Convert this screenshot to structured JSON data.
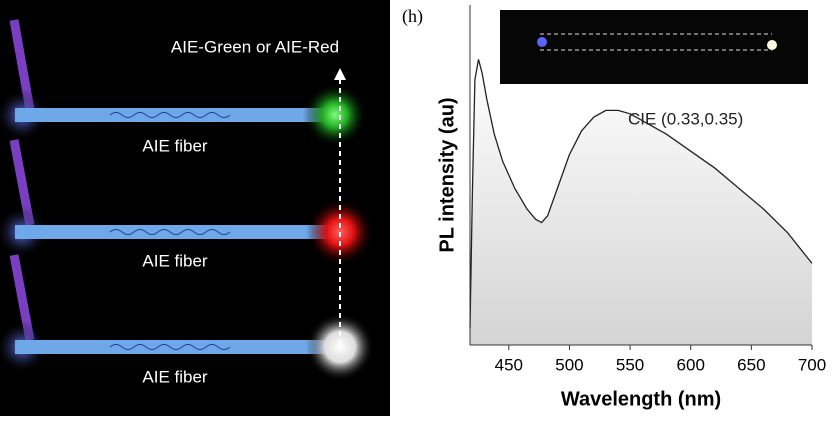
{
  "left_panel": {
    "arrow_label": "AIE-Green or AIE-Red",
    "fiber_labels": [
      "AIE fiber",
      "AIE fiber",
      "AIE fiber"
    ]
  },
  "chart_data": {
    "type": "line",
    "panel_label": "(h)",
    "x_label": "Wavelength (nm)",
    "y_label": "PL intensity (au)",
    "annotation": "CIE (0.33,0.35)",
    "xlim": [
      418,
      700
    ],
    "xticks": [
      450,
      500,
      550,
      600,
      650,
      700
    ],
    "ylim": [
      0,
      1
    ],
    "series": [
      {
        "color": "#222222",
        "x": [
          418,
          420,
          422,
          425,
          428,
          432,
          438,
          445,
          455,
          465,
          472,
          477,
          482,
          490,
          500,
          510,
          520,
          530,
          540,
          550,
          560,
          580,
          600,
          620,
          640,
          660,
          680,
          700
        ],
        "values": [
          0.05,
          0.45,
          0.78,
          0.84,
          0.8,
          0.72,
          0.62,
          0.54,
          0.46,
          0.4,
          0.37,
          0.36,
          0.38,
          0.46,
          0.56,
          0.63,
          0.67,
          0.69,
          0.69,
          0.68,
          0.66,
          0.62,
          0.57,
          0.52,
          0.46,
          0.4,
          0.33,
          0.24
        ]
      }
    ]
  }
}
